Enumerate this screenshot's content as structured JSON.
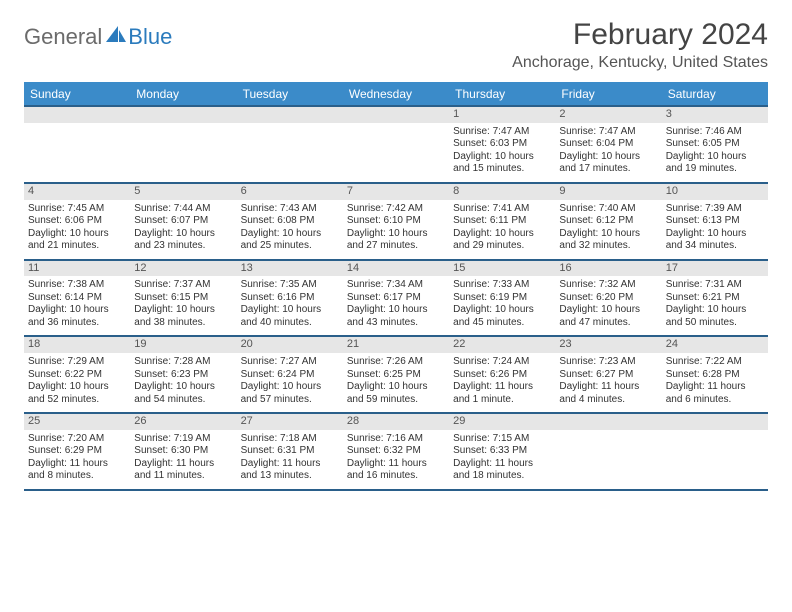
{
  "brand": {
    "gray": "General",
    "blue": "Blue"
  },
  "title": "February 2024",
  "location": "Anchorage, Kentucky, United States",
  "colors": {
    "header_bg": "#3b8bc9",
    "header_text": "#ffffff",
    "rule": "#2a5f8a",
    "daynum_bg": "#e6e6e6",
    "text": "#333333",
    "logo_gray": "#6b6b6b",
    "logo_blue": "#2b7bbd"
  },
  "day_names": [
    "Sunday",
    "Monday",
    "Tuesday",
    "Wednesday",
    "Thursday",
    "Friday",
    "Saturday"
  ],
  "weeks": [
    [
      null,
      null,
      null,
      null,
      {
        "n": "1",
        "sr": "Sunrise: 7:47 AM",
        "ss": "Sunset: 6:03 PM",
        "d1": "Daylight: 10 hours",
        "d2": "and 15 minutes."
      },
      {
        "n": "2",
        "sr": "Sunrise: 7:47 AM",
        "ss": "Sunset: 6:04 PM",
        "d1": "Daylight: 10 hours",
        "d2": "and 17 minutes."
      },
      {
        "n": "3",
        "sr": "Sunrise: 7:46 AM",
        "ss": "Sunset: 6:05 PM",
        "d1": "Daylight: 10 hours",
        "d2": "and 19 minutes."
      }
    ],
    [
      {
        "n": "4",
        "sr": "Sunrise: 7:45 AM",
        "ss": "Sunset: 6:06 PM",
        "d1": "Daylight: 10 hours",
        "d2": "and 21 minutes."
      },
      {
        "n": "5",
        "sr": "Sunrise: 7:44 AM",
        "ss": "Sunset: 6:07 PM",
        "d1": "Daylight: 10 hours",
        "d2": "and 23 minutes."
      },
      {
        "n": "6",
        "sr": "Sunrise: 7:43 AM",
        "ss": "Sunset: 6:08 PM",
        "d1": "Daylight: 10 hours",
        "d2": "and 25 minutes."
      },
      {
        "n": "7",
        "sr": "Sunrise: 7:42 AM",
        "ss": "Sunset: 6:10 PM",
        "d1": "Daylight: 10 hours",
        "d2": "and 27 minutes."
      },
      {
        "n": "8",
        "sr": "Sunrise: 7:41 AM",
        "ss": "Sunset: 6:11 PM",
        "d1": "Daylight: 10 hours",
        "d2": "and 29 minutes."
      },
      {
        "n": "9",
        "sr": "Sunrise: 7:40 AM",
        "ss": "Sunset: 6:12 PM",
        "d1": "Daylight: 10 hours",
        "d2": "and 32 minutes."
      },
      {
        "n": "10",
        "sr": "Sunrise: 7:39 AM",
        "ss": "Sunset: 6:13 PM",
        "d1": "Daylight: 10 hours",
        "d2": "and 34 minutes."
      }
    ],
    [
      {
        "n": "11",
        "sr": "Sunrise: 7:38 AM",
        "ss": "Sunset: 6:14 PM",
        "d1": "Daylight: 10 hours",
        "d2": "and 36 minutes."
      },
      {
        "n": "12",
        "sr": "Sunrise: 7:37 AM",
        "ss": "Sunset: 6:15 PM",
        "d1": "Daylight: 10 hours",
        "d2": "and 38 minutes."
      },
      {
        "n": "13",
        "sr": "Sunrise: 7:35 AM",
        "ss": "Sunset: 6:16 PM",
        "d1": "Daylight: 10 hours",
        "d2": "and 40 minutes."
      },
      {
        "n": "14",
        "sr": "Sunrise: 7:34 AM",
        "ss": "Sunset: 6:17 PM",
        "d1": "Daylight: 10 hours",
        "d2": "and 43 minutes."
      },
      {
        "n": "15",
        "sr": "Sunrise: 7:33 AM",
        "ss": "Sunset: 6:19 PM",
        "d1": "Daylight: 10 hours",
        "d2": "and 45 minutes."
      },
      {
        "n": "16",
        "sr": "Sunrise: 7:32 AM",
        "ss": "Sunset: 6:20 PM",
        "d1": "Daylight: 10 hours",
        "d2": "and 47 minutes."
      },
      {
        "n": "17",
        "sr": "Sunrise: 7:31 AM",
        "ss": "Sunset: 6:21 PM",
        "d1": "Daylight: 10 hours",
        "d2": "and 50 minutes."
      }
    ],
    [
      {
        "n": "18",
        "sr": "Sunrise: 7:29 AM",
        "ss": "Sunset: 6:22 PM",
        "d1": "Daylight: 10 hours",
        "d2": "and 52 minutes."
      },
      {
        "n": "19",
        "sr": "Sunrise: 7:28 AM",
        "ss": "Sunset: 6:23 PM",
        "d1": "Daylight: 10 hours",
        "d2": "and 54 minutes."
      },
      {
        "n": "20",
        "sr": "Sunrise: 7:27 AM",
        "ss": "Sunset: 6:24 PM",
        "d1": "Daylight: 10 hours",
        "d2": "and 57 minutes."
      },
      {
        "n": "21",
        "sr": "Sunrise: 7:26 AM",
        "ss": "Sunset: 6:25 PM",
        "d1": "Daylight: 10 hours",
        "d2": "and 59 minutes."
      },
      {
        "n": "22",
        "sr": "Sunrise: 7:24 AM",
        "ss": "Sunset: 6:26 PM",
        "d1": "Daylight: 11 hours",
        "d2": "and 1 minute."
      },
      {
        "n": "23",
        "sr": "Sunrise: 7:23 AM",
        "ss": "Sunset: 6:27 PM",
        "d1": "Daylight: 11 hours",
        "d2": "and 4 minutes."
      },
      {
        "n": "24",
        "sr": "Sunrise: 7:22 AM",
        "ss": "Sunset: 6:28 PM",
        "d1": "Daylight: 11 hours",
        "d2": "and 6 minutes."
      }
    ],
    [
      {
        "n": "25",
        "sr": "Sunrise: 7:20 AM",
        "ss": "Sunset: 6:29 PM",
        "d1": "Daylight: 11 hours",
        "d2": "and 8 minutes."
      },
      {
        "n": "26",
        "sr": "Sunrise: 7:19 AM",
        "ss": "Sunset: 6:30 PM",
        "d1": "Daylight: 11 hours",
        "d2": "and 11 minutes."
      },
      {
        "n": "27",
        "sr": "Sunrise: 7:18 AM",
        "ss": "Sunset: 6:31 PM",
        "d1": "Daylight: 11 hours",
        "d2": "and 13 minutes."
      },
      {
        "n": "28",
        "sr": "Sunrise: 7:16 AM",
        "ss": "Sunset: 6:32 PM",
        "d1": "Daylight: 11 hours",
        "d2": "and 16 minutes."
      },
      {
        "n": "29",
        "sr": "Sunrise: 7:15 AM",
        "ss": "Sunset: 6:33 PM",
        "d1": "Daylight: 11 hours",
        "d2": "and 18 minutes."
      },
      null,
      null
    ]
  ]
}
